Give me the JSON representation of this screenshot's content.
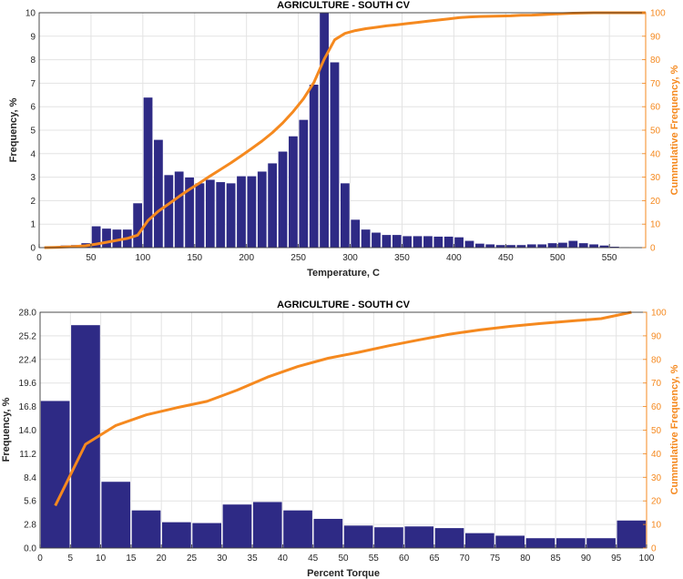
{
  "colors": {
    "bar": "#2e2a85",
    "bar_edge": "#ffffff",
    "cum": "#f5891f",
    "grid": "#e3e3e3",
    "axis": "#262626"
  },
  "chart_data": [
    {
      "id": "temp",
      "type": "bar",
      "title": "AGRICULTURE - SOUTH CV",
      "xlabel": "Temperature, C",
      "ylabel": "Frequency, %",
      "y2label": "Cummulative Frequency, %",
      "xlim": [
        0,
        585
      ],
      "ylim": [
        0,
        10
      ],
      "y2lim": [
        0,
        100
      ],
      "xticks": [
        0,
        50,
        100,
        150,
        200,
        250,
        300,
        350,
        400,
        450,
        500,
        550
      ],
      "xtick_labels": [
        "0",
        "50",
        "100",
        "150",
        "200",
        "250",
        "300",
        "350",
        "400",
        "450",
        "500",
        "550"
      ],
      "yticks": [
        0,
        1,
        2,
        3,
        4,
        5,
        6,
        7,
        8,
        9,
        10
      ],
      "ytick_labels": [
        "0",
        "1",
        "2",
        "3",
        "4",
        "5",
        "6",
        "7",
        "8",
        "9",
        "10"
      ],
      "y2ticks": [
        0,
        10,
        20,
        30,
        40,
        50,
        60,
        70,
        80,
        90,
        100
      ],
      "y2tick_labels": [
        "0",
        "10",
        "20",
        "30",
        "40",
        "50",
        "60",
        "70",
        "80",
        "90",
        "100"
      ],
      "bin_width": 10,
      "bin_centers": [
        5,
        15,
        25,
        35,
        45,
        55,
        65,
        75,
        85,
        95,
        105,
        115,
        125,
        135,
        145,
        155,
        165,
        175,
        185,
        195,
        205,
        215,
        225,
        235,
        245,
        255,
        265,
        275,
        285,
        295,
        305,
        315,
        325,
        335,
        345,
        355,
        365,
        375,
        385,
        395,
        405,
        415,
        425,
        435,
        445,
        455,
        465,
        475,
        485,
        495,
        505,
        515,
        525,
        535,
        545,
        555,
        565,
        575
      ],
      "values": [
        0.02,
        0.05,
        0.1,
        0.12,
        0.2,
        0.92,
        0.82,
        0.78,
        0.78,
        1.9,
        6.4,
        4.6,
        3.1,
        3.25,
        3.0,
        2.75,
        2.9,
        2.8,
        2.75,
        3.05,
        3.05,
        3.25,
        3.6,
        4.1,
        4.75,
        5.45,
        6.95,
        10.0,
        7.9,
        2.75,
        1.2,
        0.78,
        0.65,
        0.55,
        0.55,
        0.5,
        0.5,
        0.5,
        0.48,
        0.48,
        0.45,
        0.3,
        0.18,
        0.15,
        0.12,
        0.12,
        0.12,
        0.15,
        0.15,
        0.2,
        0.22,
        0.3,
        0.2,
        0.15,
        0.1,
        0.05,
        0.03,
        0.02
      ],
      "cumulative": {
        "x": [
          5,
          15,
          25,
          35,
          45,
          55,
          65,
          75,
          85,
          95,
          105,
          115,
          125,
          135,
          145,
          155,
          165,
          175,
          185,
          195,
          205,
          215,
          225,
          235,
          245,
          255,
          265,
          275,
          285,
          295,
          305,
          315,
          325,
          335,
          345,
          355,
          365,
          375,
          385,
          395,
          405,
          415,
          425,
          435,
          445,
          455,
          465,
          475,
          485,
          495,
          505,
          515,
          525,
          535,
          545,
          555,
          565,
          575,
          585
        ],
        "y": [
          0,
          0.1,
          0.3,
          0.5,
          0.8,
          1.5,
          2.3,
          3.1,
          3.9,
          5.3,
          11.5,
          15.5,
          18.6,
          21.8,
          24.8,
          27.6,
          30.5,
          33.3,
          36.1,
          39.1,
          42.2,
          45.4,
          49.0,
          53.1,
          57.9,
          63.4,
          70.3,
          80.3,
          88.5,
          91.2,
          92.4,
          93.2,
          93.8,
          94.4,
          94.9,
          95.4,
          95.9,
          96.4,
          96.9,
          97.4,
          97.9,
          98.2,
          98.4,
          98.5,
          98.6,
          98.7,
          98.9,
          99.0,
          99.2,
          99.4,
          99.6,
          99.8,
          99.9,
          100,
          100,
          100,
          100,
          100,
          100
        ]
      }
    },
    {
      "id": "torque",
      "type": "bar",
      "title": "AGRICULTURE - SOUTH CV",
      "xlabel": "Percent Torque",
      "ylabel": "Frequency, %",
      "y2label": "Cummulative Frequency, %",
      "xlim": [
        0,
        100
      ],
      "ylim": [
        0,
        28
      ],
      "y2lim": [
        0,
        100
      ],
      "xticks": [
        0,
        5,
        10,
        15,
        20,
        25,
        30,
        35,
        40,
        45,
        50,
        55,
        60,
        65,
        70,
        75,
        80,
        85,
        90,
        95,
        100
      ],
      "xtick_labels": [
        "0",
        "5",
        "10",
        "15",
        "20",
        "25",
        "30",
        "35",
        "40",
        "45",
        "50",
        "55",
        "60",
        "65",
        "70",
        "75",
        "80",
        "85",
        "90",
        "95",
        "100"
      ],
      "yticks": [
        0,
        2.8,
        5.6,
        8.4,
        11.2,
        14,
        16.8,
        19.6,
        22.4,
        25.2,
        28
      ],
      "ytick_labels": [
        "0.0",
        "2.8",
        "5.6",
        "8.4",
        "11.2",
        "14.0",
        "16.8",
        "19.6",
        "22.4",
        "25.2",
        "28.0"
      ],
      "y2ticks": [
        0,
        10,
        20,
        30,
        40,
        50,
        60,
        70,
        80,
        90,
        100
      ],
      "y2tick_labels": [
        "0",
        "10",
        "20",
        "30",
        "40",
        "50",
        "60",
        "70",
        "80",
        "90",
        "100"
      ],
      "bin_width": 5,
      "bin_centers": [
        2.5,
        7.5,
        12.5,
        17.5,
        22.5,
        27.5,
        32.5,
        37.5,
        42.5,
        47.5,
        52.5,
        57.5,
        62.5,
        67.5,
        72.5,
        77.5,
        82.5,
        87.5,
        92.5,
        97.5
      ],
      "values": [
        17.5,
        26.5,
        7.9,
        4.5,
        3.1,
        3.0,
        5.2,
        5.5,
        4.5,
        3.5,
        2.7,
        2.5,
        2.6,
        2.4,
        1.8,
        1.5,
        1.2,
        1.2,
        1.2,
        3.3
      ],
      "cumulative": {
        "x": [
          2.5,
          7.5,
          12.5,
          17.5,
          22.5,
          27.5,
          32.5,
          37.5,
          42.5,
          47.5,
          52.5,
          57.5,
          62.5,
          67.5,
          72.5,
          77.5,
          82.5,
          87.5,
          92.5,
          97.5
        ],
        "y": [
          18,
          44,
          52,
          56.5,
          59.5,
          62.2,
          67,
          72.5,
          77,
          80.5,
          83,
          85.8,
          88.3,
          90.7,
          92.5,
          94,
          95.2,
          96.3,
          97.3,
          100
        ]
      }
    }
  ]
}
